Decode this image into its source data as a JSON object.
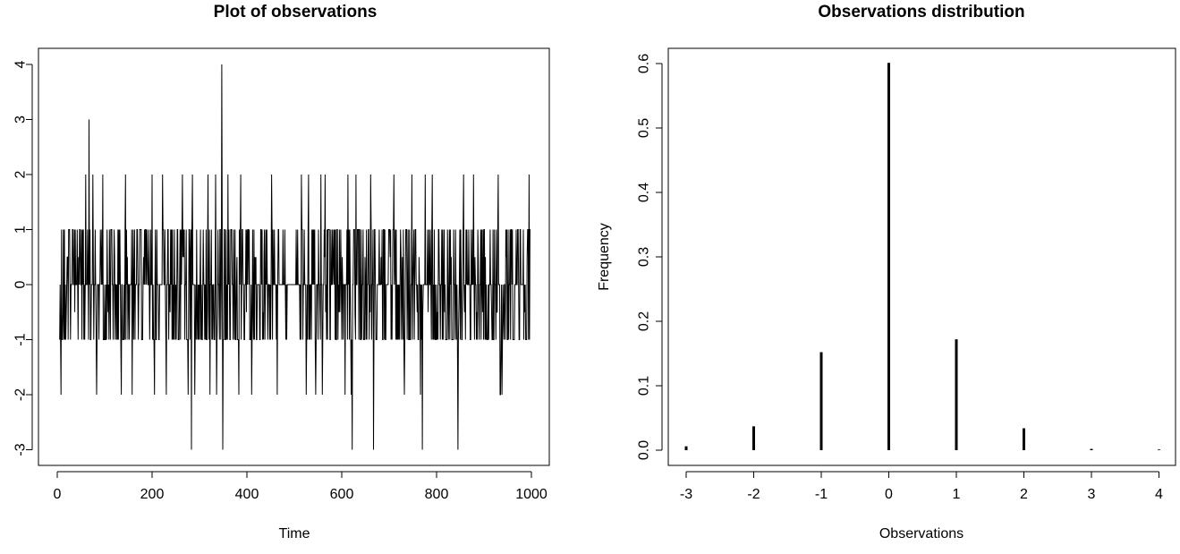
{
  "chart_data": [
    {
      "type": "line",
      "title": "Plot of observations",
      "xlabel": "Time",
      "ylabel": "",
      "xlim": [
        0,
        1000
      ],
      "ylim": [
        -3,
        4
      ],
      "xticks": [
        "0",
        "200",
        "400",
        "600",
        "800",
        "1000"
      ],
      "yticks": [
        "-3",
        "-2",
        "-1",
        "0",
        "1",
        "2",
        "3",
        "4"
      ],
      "series": [
        {
          "x": [
            8,
            60,
            67,
            75,
            83,
            96,
            135,
            144,
            158,
            200,
            205,
            222,
            230,
            264,
            276,
            283,
            285,
            290,
            318,
            322,
            334,
            336,
            347,
            349,
            360,
            383,
            387,
            410,
            452,
            464,
            515,
            525,
            530,
            545,
            556,
            559,
            565,
            607,
            613,
            620,
            622,
            630,
            661,
            667,
            710,
            732,
            748,
            766,
            770,
            776,
            791,
            845,
            857,
            878,
            930,
            934,
            935,
            938,
            995
          ],
          "values": [
            -2,
            2,
            3,
            2,
            -2,
            2,
            -2,
            2,
            -2,
            2,
            -2,
            2,
            -2,
            2,
            -2,
            -3,
            2,
            -2,
            2,
            -2,
            2,
            -2,
            4,
            -3,
            2,
            -2,
            2,
            -2,
            2,
            -2,
            2,
            -2,
            2,
            -2,
            2,
            -2,
            2,
            -2,
            2,
            -2,
            -3,
            2,
            2,
            -3,
            2,
            -2,
            2,
            -2,
            -3,
            2,
            2,
            -3,
            2,
            2,
            2,
            -2,
            -2,
            -2,
            2
          ]
        }
      ],
      "note_density": "dense oscillation between -1 and 1 for t in 5-998 except quiet stretch 470-510"
    },
    {
      "type": "bar",
      "title": "Observations distribution",
      "xlabel": "Observations",
      "ylabel": "Frequency",
      "categories": [
        "-3",
        "-2",
        "-1",
        "0",
        "1",
        "2",
        "3",
        "4"
      ],
      "values": [
        0.006,
        0.037,
        0.152,
        0.601,
        0.172,
        0.034,
        0.002,
        0.001
      ],
      "ylim": [
        0,
        0.6
      ],
      "yticks": [
        "0.0",
        "0.1",
        "0.2",
        "0.3",
        "0.4",
        "0.5",
        "0.6"
      ]
    }
  ]
}
